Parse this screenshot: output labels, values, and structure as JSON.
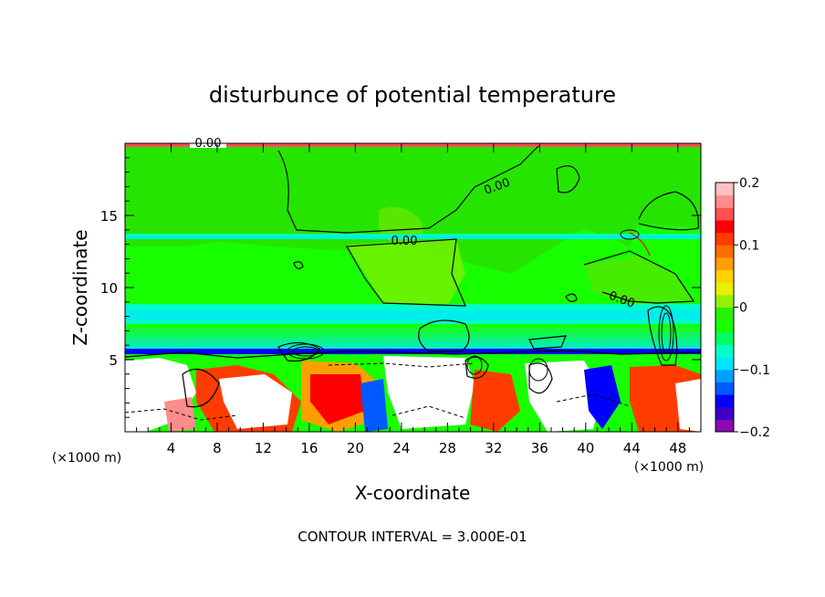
{
  "chart_data": {
    "type": "heatmap",
    "title": "disturbunce of potential temperature",
    "xlabel": "X-coordinate",
    "ylabel": "Z-coordinate",
    "x_unit_label": "(×1000 m)",
    "x_unit_label_right": "(×1000 m)",
    "x_ticks": [
      4,
      8,
      12,
      16,
      20,
      24,
      28,
      32,
      36,
      40,
      44,
      48
    ],
    "y_ticks": [
      5,
      10,
      15
    ],
    "xlim": [
      0,
      50
    ],
    "ylim": [
      0,
      20
    ],
    "colorbar": {
      "min": -0.2,
      "max": 0.2,
      "ticks": [
        "0.2",
        "0.1",
        "0",
        "−0.1",
        "−0.2"
      ],
      "tick_values": [
        0.2,
        0.1,
        0.0,
        -0.1,
        -0.2
      ],
      "colors": [
        "#8a0ab4",
        "#3c00c8",
        "#0000ff",
        "#005aff",
        "#00a0ff",
        "#00e6ff",
        "#00ffc8",
        "#00ff64",
        "#18ff00",
        "#28f000",
        "#96f000",
        "#e6f000",
        "#ffd200",
        "#ffa000",
        "#ff6e00",
        "#ff3c00",
        "#ff0000",
        "#ff5050",
        "#ff8c8c",
        "#ffc0c0"
      ]
    },
    "contour_labels": [
      "0.00",
      "0.00",
      "0.00",
      "0.00"
    ],
    "contour_interval_text": "CONTOUR INTERVAL = 3.000E-01"
  }
}
